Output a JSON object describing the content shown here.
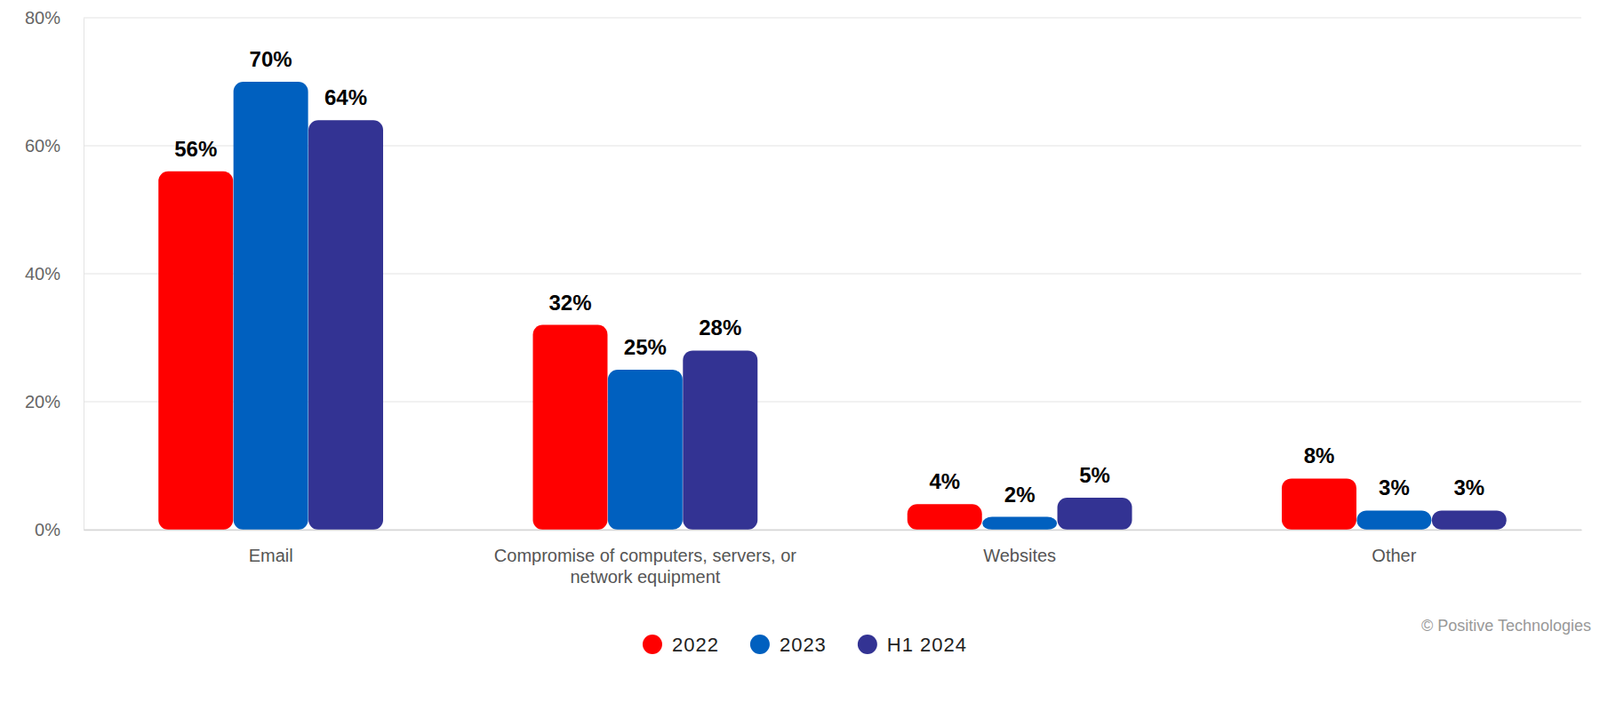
{
  "chart_data": {
    "type": "bar",
    "categories": [
      "Email",
      "Compromise of computers, servers, or network equipment",
      "Websites",
      "Other"
    ],
    "series": [
      {
        "name": "2022",
        "color": "#ff0000",
        "values": [
          56,
          32,
          4,
          8
        ],
        "value_labels": [
          "56%",
          "32%",
          "4%",
          "8%"
        ]
      },
      {
        "name": "2023",
        "color": "#0060bf",
        "values": [
          70,
          25,
          2,
          3
        ],
        "value_labels": [
          "70%",
          "25%",
          "2%",
          "3%"
        ]
      },
      {
        "name": "H1 2024",
        "color": "#333393",
        "values": [
          64,
          28,
          5,
          3
        ],
        "value_labels": [
          "64%",
          "28%",
          "5%",
          "3%"
        ]
      }
    ],
    "ylim": [
      0,
      80
    ],
    "yticks": [
      {
        "value": 0,
        "label": "0%"
      },
      {
        "value": 20,
        "label": "20%"
      },
      {
        "value": 40,
        "label": "40%"
      },
      {
        "value": 60,
        "label": "60%"
      },
      {
        "value": 80,
        "label": "80%"
      }
    ],
    "grid": true,
    "data_labels": true,
    "legend": "bottom",
    "source": "© Positive Technologies"
  }
}
